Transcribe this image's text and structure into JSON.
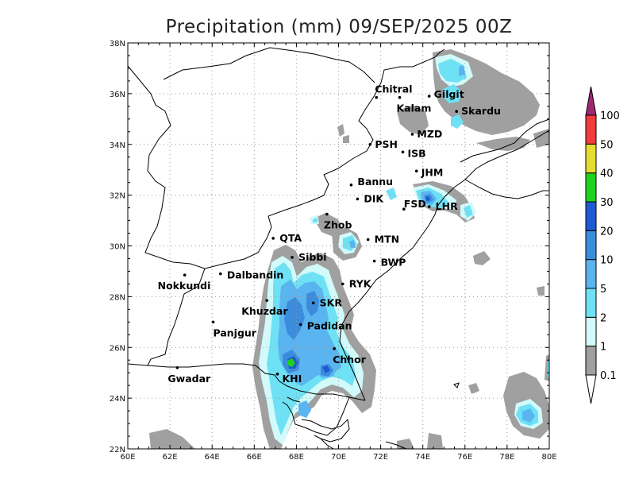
{
  "title": "Precipitation (mm) 09/SEP/2025 00Z",
  "map": {
    "lon_range": [
      60,
      80
    ],
    "lat_range": [
      22,
      38
    ],
    "lon_ticks": [
      "60E",
      "62E",
      "64E",
      "66E",
      "68E",
      "70E",
      "72E",
      "74E",
      "76E",
      "78E",
      "80E"
    ],
    "lat_ticks": [
      "22N",
      "24N",
      "26N",
      "28N",
      "30N",
      "32N",
      "34N",
      "36N",
      "38N"
    ],
    "grid": "dotted"
  },
  "colorbar": {
    "levels": [
      "0.1",
      "1",
      "2",
      "5",
      "10",
      "20",
      "30",
      "40",
      "50",
      "100"
    ],
    "colors": [
      "#a0a0a0",
      "#d2fafa",
      "#6ee1f5",
      "#5ab4f0",
      "#3c8cdc",
      "#1e5ad2",
      "#1ed21e",
      "#e6dc32",
      "#f03c3c",
      "#a02873"
    ],
    "below_color": "#ffffff"
  },
  "cities": [
    {
      "name": "Chitral",
      "lon": 71.8,
      "lat": 35.85
    },
    {
      "name": "Gilgit",
      "lon": 74.3,
      "lat": 35.9
    },
    {
      "name": "Kalam",
      "lon": 72.9,
      "lat": 35.85
    },
    {
      "name": "Skardu",
      "lon": 75.6,
      "lat": 35.3
    },
    {
      "name": "MZD",
      "lon": 73.5,
      "lat": 34.4
    },
    {
      "name": "PSH",
      "lon": 71.5,
      "lat": 34.0
    },
    {
      "name": "ISB",
      "lon": 73.05,
      "lat": 33.7
    },
    {
      "name": "JHM",
      "lon": 73.7,
      "lat": 32.95
    },
    {
      "name": "Bannu",
      "lon": 70.6,
      "lat": 32.4
    },
    {
      "name": "DIK",
      "lon": 70.9,
      "lat": 31.85
    },
    {
      "name": "FSD",
      "lon": 73.1,
      "lat": 31.45
    },
    {
      "name": "LHR",
      "lon": 74.3,
      "lat": 31.55
    },
    {
      "name": "Zhob",
      "lon": 69.45,
      "lat": 31.25
    },
    {
      "name": "QTA",
      "lon": 66.9,
      "lat": 30.3
    },
    {
      "name": "MTN",
      "lon": 71.4,
      "lat": 30.25
    },
    {
      "name": "Sibbi",
      "lon": 67.8,
      "lat": 29.55
    },
    {
      "name": "BWP",
      "lon": 71.7,
      "lat": 29.4
    },
    {
      "name": "Dalbandin",
      "lon": 64.4,
      "lat": 28.9
    },
    {
      "name": "Nokkundi",
      "lon": 62.7,
      "lat": 28.85
    },
    {
      "name": "RYK",
      "lon": 70.2,
      "lat": 28.5
    },
    {
      "name": "SKR",
      "lon": 68.8,
      "lat": 27.75
    },
    {
      "name": "Khuzdar",
      "lon": 66.6,
      "lat": 27.85
    },
    {
      "name": "Panjgur",
      "lon": 64.05,
      "lat": 27.0
    },
    {
      "name": "Padidan",
      "lon": 68.2,
      "lat": 26.9
    },
    {
      "name": "Chhor",
      "lon": 69.8,
      "lat": 25.95
    },
    {
      "name": "KHI",
      "lon": 67.1,
      "lat": 24.95
    },
    {
      "name": "Gwadar",
      "lon": 62.35,
      "lat": 25.2
    }
  ]
}
